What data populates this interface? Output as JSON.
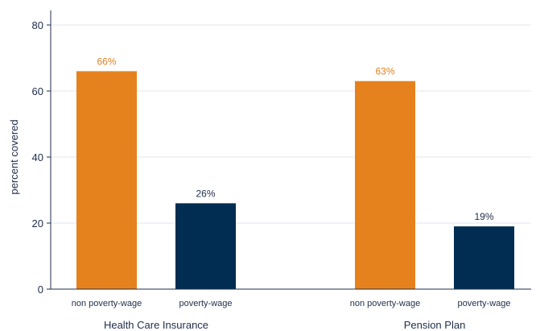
{
  "chart_data": {
    "type": "bar",
    "ylabel": "percent covered",
    "ylim": [
      0,
      80
    ],
    "yticks": [
      0,
      20,
      40,
      60,
      80
    ],
    "grid": true,
    "groups": [
      {
        "label": "Health Care Insurance",
        "bars": [
          {
            "category": "non poverty-wage",
            "value": 66,
            "label": "66%"
          },
          {
            "category": "poverty-wage",
            "value": 26,
            "label": "26%"
          }
        ]
      },
      {
        "label": "Pension Plan",
        "bars": [
          {
            "category": "non poverty-wage",
            "value": 63,
            "label": "63%"
          },
          {
            "category": "poverty-wage",
            "value": 19,
            "label": "19%"
          }
        ]
      }
    ],
    "colors": {
      "non poverty-wage": "#e5821e",
      "poverty-wage": "#022d52",
      "label_non_poverty": "#e5821e",
      "label_poverty": "#1f2d4a",
      "grid": "#e3e6ec",
      "axis": "#1f2d4a"
    }
  }
}
